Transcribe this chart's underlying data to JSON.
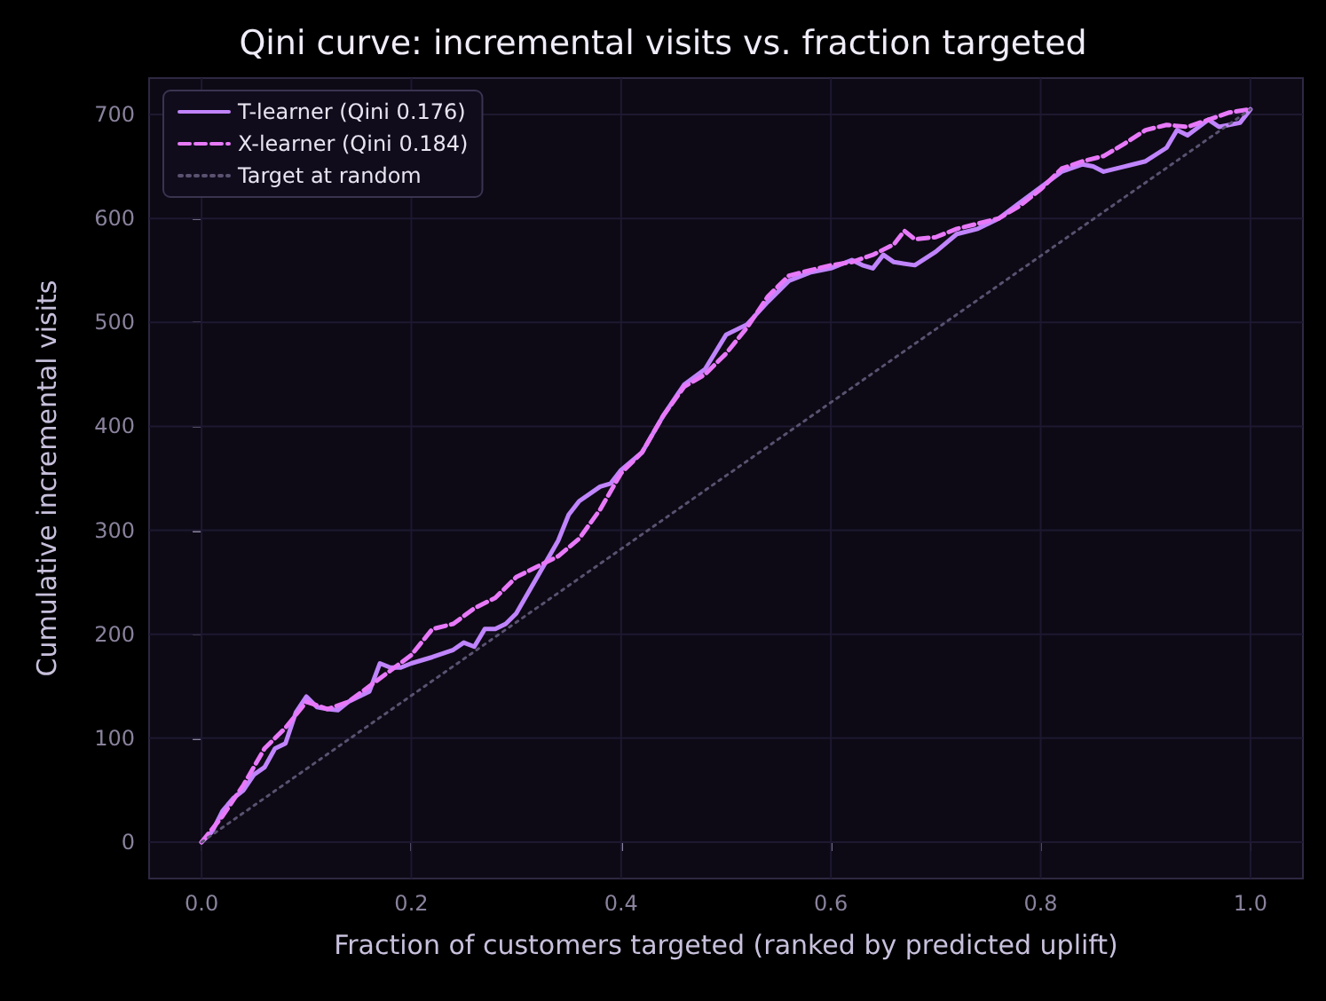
{
  "chart_data": {
    "type": "line",
    "title": "Qini curve: incremental visits vs. fraction targeted",
    "xlabel": "Fraction of customers targeted (ranked by predicted uplift)",
    "ylabel": "Cumulative incremental visits",
    "xlim": [
      -0.05,
      1.05
    ],
    "ylim": [
      -35,
      735
    ],
    "xticks": [
      {
        "value": 0,
        "label": "0.0"
      },
      0.2,
      0.4,
      0.6,
      0.8,
      {
        "value": 1,
        "label": "1.0"
      }
    ],
    "yticks": [
      0,
      100,
      200,
      300,
      400,
      500,
      600,
      700
    ],
    "grid": true,
    "legend": "top left",
    "series": [
      {
        "name": "T-learner (Qini 0.176)",
        "color": "#c084fc",
        "line_style": "solid",
        "x": [
          0,
          0.01,
          0.02,
          0.03,
          0.04,
          0.05,
          0.06,
          0.07,
          0.08,
          0.09,
          0.1,
          0.11,
          0.12,
          0.13,
          0.14,
          0.15,
          0.16,
          0.17,
          0.18,
          0.19,
          0.2,
          0.22,
          0.24,
          0.25,
          0.26,
          0.27,
          0.28,
          0.29,
          0.3,
          0.32,
          0.34,
          0.35,
          0.36,
          0.38,
          0.39,
          0.4,
          0.42,
          0.44,
          0.46,
          0.48,
          0.5,
          0.52,
          0.54,
          0.56,
          0.58,
          0.6,
          0.62,
          0.63,
          0.64,
          0.65,
          0.66,
          0.68,
          0.7,
          0.72,
          0.74,
          0.76,
          0.78,
          0.8,
          0.82,
          0.84,
          0.85,
          0.86,
          0.88,
          0.9,
          0.92,
          0.93,
          0.94,
          0.96,
          0.97,
          0.99,
          1
        ],
        "values": [
          0,
          10,
          30,
          42,
          50,
          65,
          72,
          90,
          95,
          125,
          140,
          130,
          128,
          127,
          135,
          140,
          145,
          172,
          168,
          168,
          172,
          178,
          185,
          192,
          188,
          205,
          205,
          210,
          220,
          255,
          290,
          315,
          328,
          342,
          345,
          358,
          375,
          410,
          440,
          455,
          488,
          498,
          520,
          540,
          548,
          552,
          560,
          555,
          552,
          565,
          558,
          555,
          568,
          585,
          590,
          600,
          615,
          630,
          645,
          652,
          650,
          645,
          650,
          655,
          668,
          685,
          680,
          695,
          688,
          692,
          705
        ]
      },
      {
        "name": "X-learner (Qini 0.184)",
        "color": "#e879f9",
        "line_style": "dashed",
        "x": [
          0,
          0.02,
          0.04,
          0.06,
          0.08,
          0.1,
          0.12,
          0.14,
          0.16,
          0.18,
          0.2,
          0.22,
          0.24,
          0.26,
          0.28,
          0.3,
          0.32,
          0.34,
          0.36,
          0.38,
          0.4,
          0.42,
          0.44,
          0.46,
          0.48,
          0.5,
          0.52,
          0.54,
          0.56,
          0.58,
          0.6,
          0.62,
          0.64,
          0.66,
          0.67,
          0.68,
          0.7,
          0.72,
          0.74,
          0.76,
          0.78,
          0.8,
          0.82,
          0.84,
          0.86,
          0.88,
          0.9,
          0.92,
          0.94,
          0.96,
          0.98,
          1
        ],
        "values": [
          0,
          25,
          55,
          90,
          110,
          135,
          128,
          135,
          150,
          165,
          180,
          205,
          210,
          225,
          235,
          255,
          265,
          275,
          292,
          320,
          355,
          375,
          410,
          438,
          450,
          470,
          495,
          525,
          545,
          550,
          555,
          558,
          565,
          575,
          588,
          580,
          582,
          590,
          595,
          600,
          612,
          628,
          648,
          655,
          660,
          672,
          685,
          690,
          688,
          695,
          702,
          705
        ]
      },
      {
        "name": "Target at random",
        "color": "#5a5270",
        "line_style": "dotted",
        "x": [
          0,
          1
        ],
        "values": [
          0,
          705
        ]
      }
    ]
  }
}
